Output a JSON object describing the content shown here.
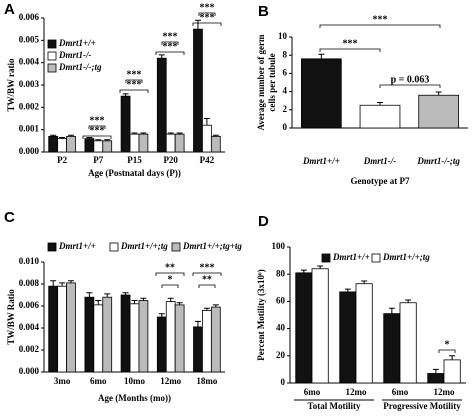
{
  "chart_data": [
    {
      "type": "bar",
      "panel": "A",
      "ylabel": "TW/BW ratio",
      "xlabel": "Age (Postnatal days (P))",
      "categories": [
        "P2",
        "P7",
        "P15",
        "P20",
        "P42"
      ],
      "series": [
        {
          "name": "Dmrt1+/+",
          "color": "#111111",
          "values": [
            0.0007,
            0.0006,
            0.0025,
            0.0042,
            0.0055
          ],
          "errors": [
            5e-05,
            5e-05,
            0.0001,
            0.00015,
            0.0004
          ]
        },
        {
          "name": "Dmrt1-/-",
          "color": "#ffffff",
          "values": [
            0.0006,
            0.0005,
            0.0008,
            0.0008,
            0.0012
          ],
          "errors": [
            5e-05,
            5e-05,
            5e-05,
            5e-05,
            0.0003
          ]
        },
        {
          "name": "Dmrt1-/-;tg",
          "color": "#bbbbbb",
          "values": [
            0.0007,
            0.0005,
            0.0008,
            0.0008,
            0.0007
          ],
          "errors": [
            5e-05,
            5e-05,
            5e-05,
            5e-05,
            5e-05
          ]
        }
      ],
      "ylim": [
        0,
        0.006
      ],
      "yticks": [
        {
          "value": 0,
          "label": "0.000"
        },
        {
          "value": 0.001,
          "label": "0.001"
        },
        {
          "value": 0.002,
          "label": "0.002"
        },
        {
          "value": 0.003,
          "label": "0.003"
        },
        {
          "value": 0.004,
          "label": "0.004"
        },
        {
          "value": 0.005,
          "label": "0.005"
        },
        {
          "value": 0.006,
          "label": "0.006"
        }
      ],
      "annotations": [
        "***",
        "***",
        "***",
        "***",
        "***",
        "***",
        "***",
        "***"
      ]
    },
    {
      "type": "bar",
      "panel": "B",
      "ylabel": [
        "Average number of germ",
        "cells per tubule"
      ],
      "xlabel": "Genotype at P7",
      "categories": [
        "Dmrt1+/+",
        "Dmrt1-/-",
        "Dmrt1-/-;tg"
      ],
      "values": [
        7.6,
        2.5,
        3.6
      ],
      "errors": [
        0.5,
        0.3,
        0.35
      ],
      "colors": [
        "#111111",
        "#ffffff",
        "#bbbbbb"
      ],
      "ylim": [
        0,
        10
      ],
      "yticks": [
        0,
        2,
        4,
        6,
        8,
        10
      ],
      "annotations": [
        "***",
        "***",
        "p = 0.063"
      ]
    },
    {
      "type": "bar",
      "panel": "C",
      "ylabel": "TW/BW Ratio",
      "xlabel": "Age (Months (mo))",
      "categories": [
        "3mo",
        "6mo",
        "10mo",
        "12mo",
        "18mo"
      ],
      "series": [
        {
          "name": "Dmrt1+/+",
          "color": "#111111",
          "values": [
            0.0078,
            0.0068,
            0.007,
            0.005,
            0.0041
          ],
          "errors": [
            0.0005,
            0.0004,
            0.0002,
            0.0003,
            0.0005
          ]
        },
        {
          "name": "Dmrt1+/+;tg",
          "color": "#ffffff",
          "values": [
            0.0078,
            0.0061,
            0.0062,
            0.0064,
            0.0056
          ],
          "errors": [
            0.0003,
            0.0004,
            0.0003,
            0.0003,
            0.0002
          ]
        },
        {
          "name": "Dmrt1+/+;tg+tg",
          "color": "#bbbbbb",
          "values": [
            0.0081,
            0.0068,
            0.0065,
            0.0061,
            0.0059
          ],
          "errors": [
            0.0002,
            0.0003,
            0.0002,
            0.0002,
            0.0002
          ]
        }
      ],
      "ylim": [
        0,
        0.01
      ],
      "yticks": [
        {
          "value": 0,
          "label": "0.000"
        },
        {
          "value": 0.002,
          "label": "0.002"
        },
        {
          "value": 0.004,
          "label": "0.004"
        },
        {
          "value": 0.006,
          "label": "0.006"
        },
        {
          "value": 0.008,
          "label": "0.008"
        },
        {
          "value": 0.01,
          "label": "0.010"
        }
      ],
      "annotations": [
        "**",
        "*",
        "***",
        "**"
      ]
    },
    {
      "type": "bar",
      "panel": "D",
      "ylabel": "Percent Motility (3x10⁶)",
      "categories": [
        "6mo",
        "12mo",
        "6mo",
        "12mo"
      ],
      "groups": [
        "Total Motility",
        "Progressive Motility"
      ],
      "series": [
        {
          "name": "Dmrt1+/+",
          "color": "#111111",
          "values": [
            81,
            67,
            51,
            7
          ],
          "errors": [
            2,
            2,
            4,
            3
          ]
        },
        {
          "name": "Dmrt1+/+;tg",
          "color": "#ffffff",
          "values": [
            84,
            73,
            59,
            17
          ],
          "errors": [
            2,
            2,
            2,
            3
          ]
        }
      ],
      "ylim": [
        0,
        100
      ],
      "yticks": [
        0,
        20,
        40,
        60,
        80,
        100
      ],
      "annotations": [
        "*"
      ]
    }
  ]
}
